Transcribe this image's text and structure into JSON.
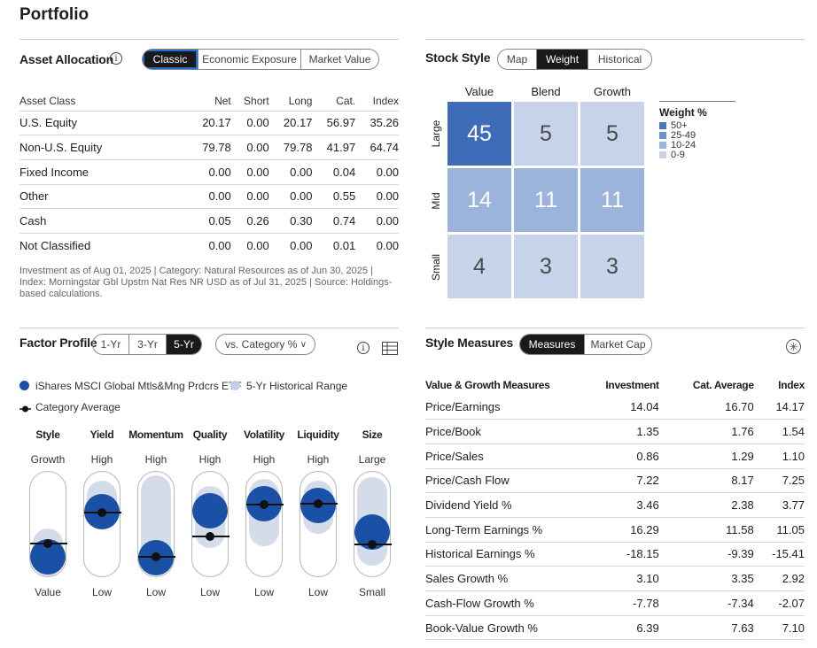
{
  "page_title": "Portfolio",
  "asset_allocation": {
    "title": "Asset Allocation",
    "tabs": [
      "Classic",
      "Economic Exposure",
      "Market Value"
    ],
    "columns": [
      "Asset Class",
      "Net",
      "Short",
      "Long",
      "Cat.",
      "Index"
    ],
    "rows": [
      [
        "U.S. Equity",
        "20.17",
        "0.00",
        "20.17",
        "56.97",
        "35.26"
      ],
      [
        "Non-U.S. Equity",
        "79.78",
        "0.00",
        "79.78",
        "41.97",
        "64.74"
      ],
      [
        "Fixed Income",
        "0.00",
        "0.00",
        "0.00",
        "0.04",
        "0.00"
      ],
      [
        "Other",
        "0.00",
        "0.00",
        "0.00",
        "0.55",
        "0.00"
      ],
      [
        "Cash",
        "0.05",
        "0.26",
        "0.30",
        "0.74",
        "0.00"
      ],
      [
        "Not Classified",
        "0.00",
        "0.00",
        "0.00",
        "0.01",
        "0.00"
      ]
    ],
    "note": "Investment as of Aug 01, 2025 | Category: Natural Resources as of Jun 30, 2025 | Index: Morningstar Gbl Upstm Nat Res NR USD as of Jul 31, 2025 | Source: Holdings-based calculations."
  },
  "stock_style": {
    "title": "Stock Style",
    "tabs": [
      "Map",
      "Weight",
      "Historical"
    ],
    "columns": [
      "Value",
      "Blend",
      "Growth"
    ],
    "rows": [
      "Large",
      "Mid",
      "Small"
    ],
    "cells": [
      [
        "45",
        "5",
        "5"
      ],
      [
        "14",
        "11",
        "11"
      ],
      [
        "4",
        "3",
        "3"
      ]
    ],
    "legend_title": "Weight %",
    "legend": [
      {
        "label": "50+",
        "color": "#4a76bd"
      },
      {
        "label": "25-49",
        "color": "#6e92ca"
      },
      {
        "label": "10-24",
        "color": "#9cb3dc"
      },
      {
        "label": "0-9",
        "color": "#c6d3ea"
      }
    ]
  },
  "factor_profile": {
    "title": "Factor Profile",
    "periods": [
      "1-Yr",
      "3-Yr",
      "5-Yr"
    ],
    "compare_label": "vs. Category %",
    "legend_fund": "iShares MSCI Global Mtls&Mng Prdcrs ETF",
    "legend_range": "5-Yr Historical Range",
    "legend_avg": "Category Average",
    "factors": [
      {
        "name": "Style",
        "top": "Growth",
        "bottom": "Value"
      },
      {
        "name": "Yield",
        "top": "High",
        "bottom": "Low"
      },
      {
        "name": "Momentum",
        "top": "High",
        "bottom": "Low"
      },
      {
        "name": "Quality",
        "top": "High",
        "bottom": "Low"
      },
      {
        "name": "Volatility",
        "top": "High",
        "bottom": "Low"
      },
      {
        "name": "Liquidity",
        "top": "High",
        "bottom": "Low"
      },
      {
        "name": "Size",
        "top": "Large",
        "bottom": "Small"
      }
    ]
  },
  "style_measures": {
    "title": "Style Measures",
    "tabs": [
      "Measures",
      "Market Cap"
    ],
    "columns": [
      "Value & Growth Measures",
      "Investment",
      "Cat. Average",
      "Index"
    ],
    "rows": [
      [
        "Price/Earnings",
        "14.04",
        "16.70",
        "14.17"
      ],
      [
        "Price/Book",
        "1.35",
        "1.76",
        "1.54"
      ],
      [
        "Price/Sales",
        "0.86",
        "1.29",
        "1.10"
      ],
      [
        "Price/Cash Flow",
        "7.22",
        "8.17",
        "7.25"
      ],
      [
        "Dividend Yield %",
        "3.46",
        "2.38",
        "3.77"
      ],
      [
        "Long-Term Earnings %",
        "16.29",
        "11.58",
        "11.05"
      ],
      [
        "Historical Earnings %",
        "-18.15",
        "-9.39",
        "-15.41"
      ],
      [
        "Sales Growth %",
        "3.10",
        "3.35",
        "2.92"
      ],
      [
        "Cash-Flow Growth %",
        "-7.78",
        "-7.34",
        "-2.07"
      ],
      [
        "Book-Value Growth %",
        "6.39",
        "7.63",
        "7.10"
      ]
    ]
  }
}
